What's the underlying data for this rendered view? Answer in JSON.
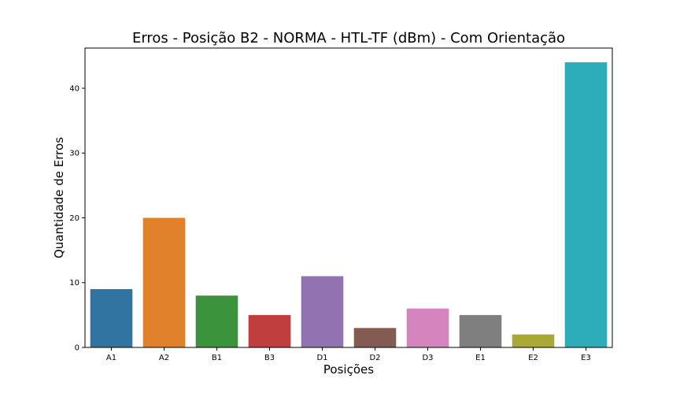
{
  "chart_data": {
    "type": "bar",
    "title": "Erros - Posição B2 - NORMA - HTL-TF (dBm) - Com Orientação",
    "xlabel": "Posições",
    "ylabel": "Quantidade de Erros",
    "categories": [
      "A1",
      "A2",
      "B1",
      "B3",
      "D1",
      "D2",
      "D3",
      "E1",
      "E2",
      "E3"
    ],
    "values": [
      9,
      20,
      8,
      5,
      11,
      3,
      6,
      5,
      2,
      44
    ],
    "colors": [
      "#3274a1",
      "#e1812c",
      "#3a923a",
      "#c03d3e",
      "#9372b2",
      "#845b53",
      "#d684bd",
      "#7f7f7f",
      "#a9aa35",
      "#2eabb8"
    ],
    "ylim": [
      0,
      46.2
    ],
    "yticks": [
      0,
      10,
      20,
      30,
      40
    ],
    "grid": false
  }
}
